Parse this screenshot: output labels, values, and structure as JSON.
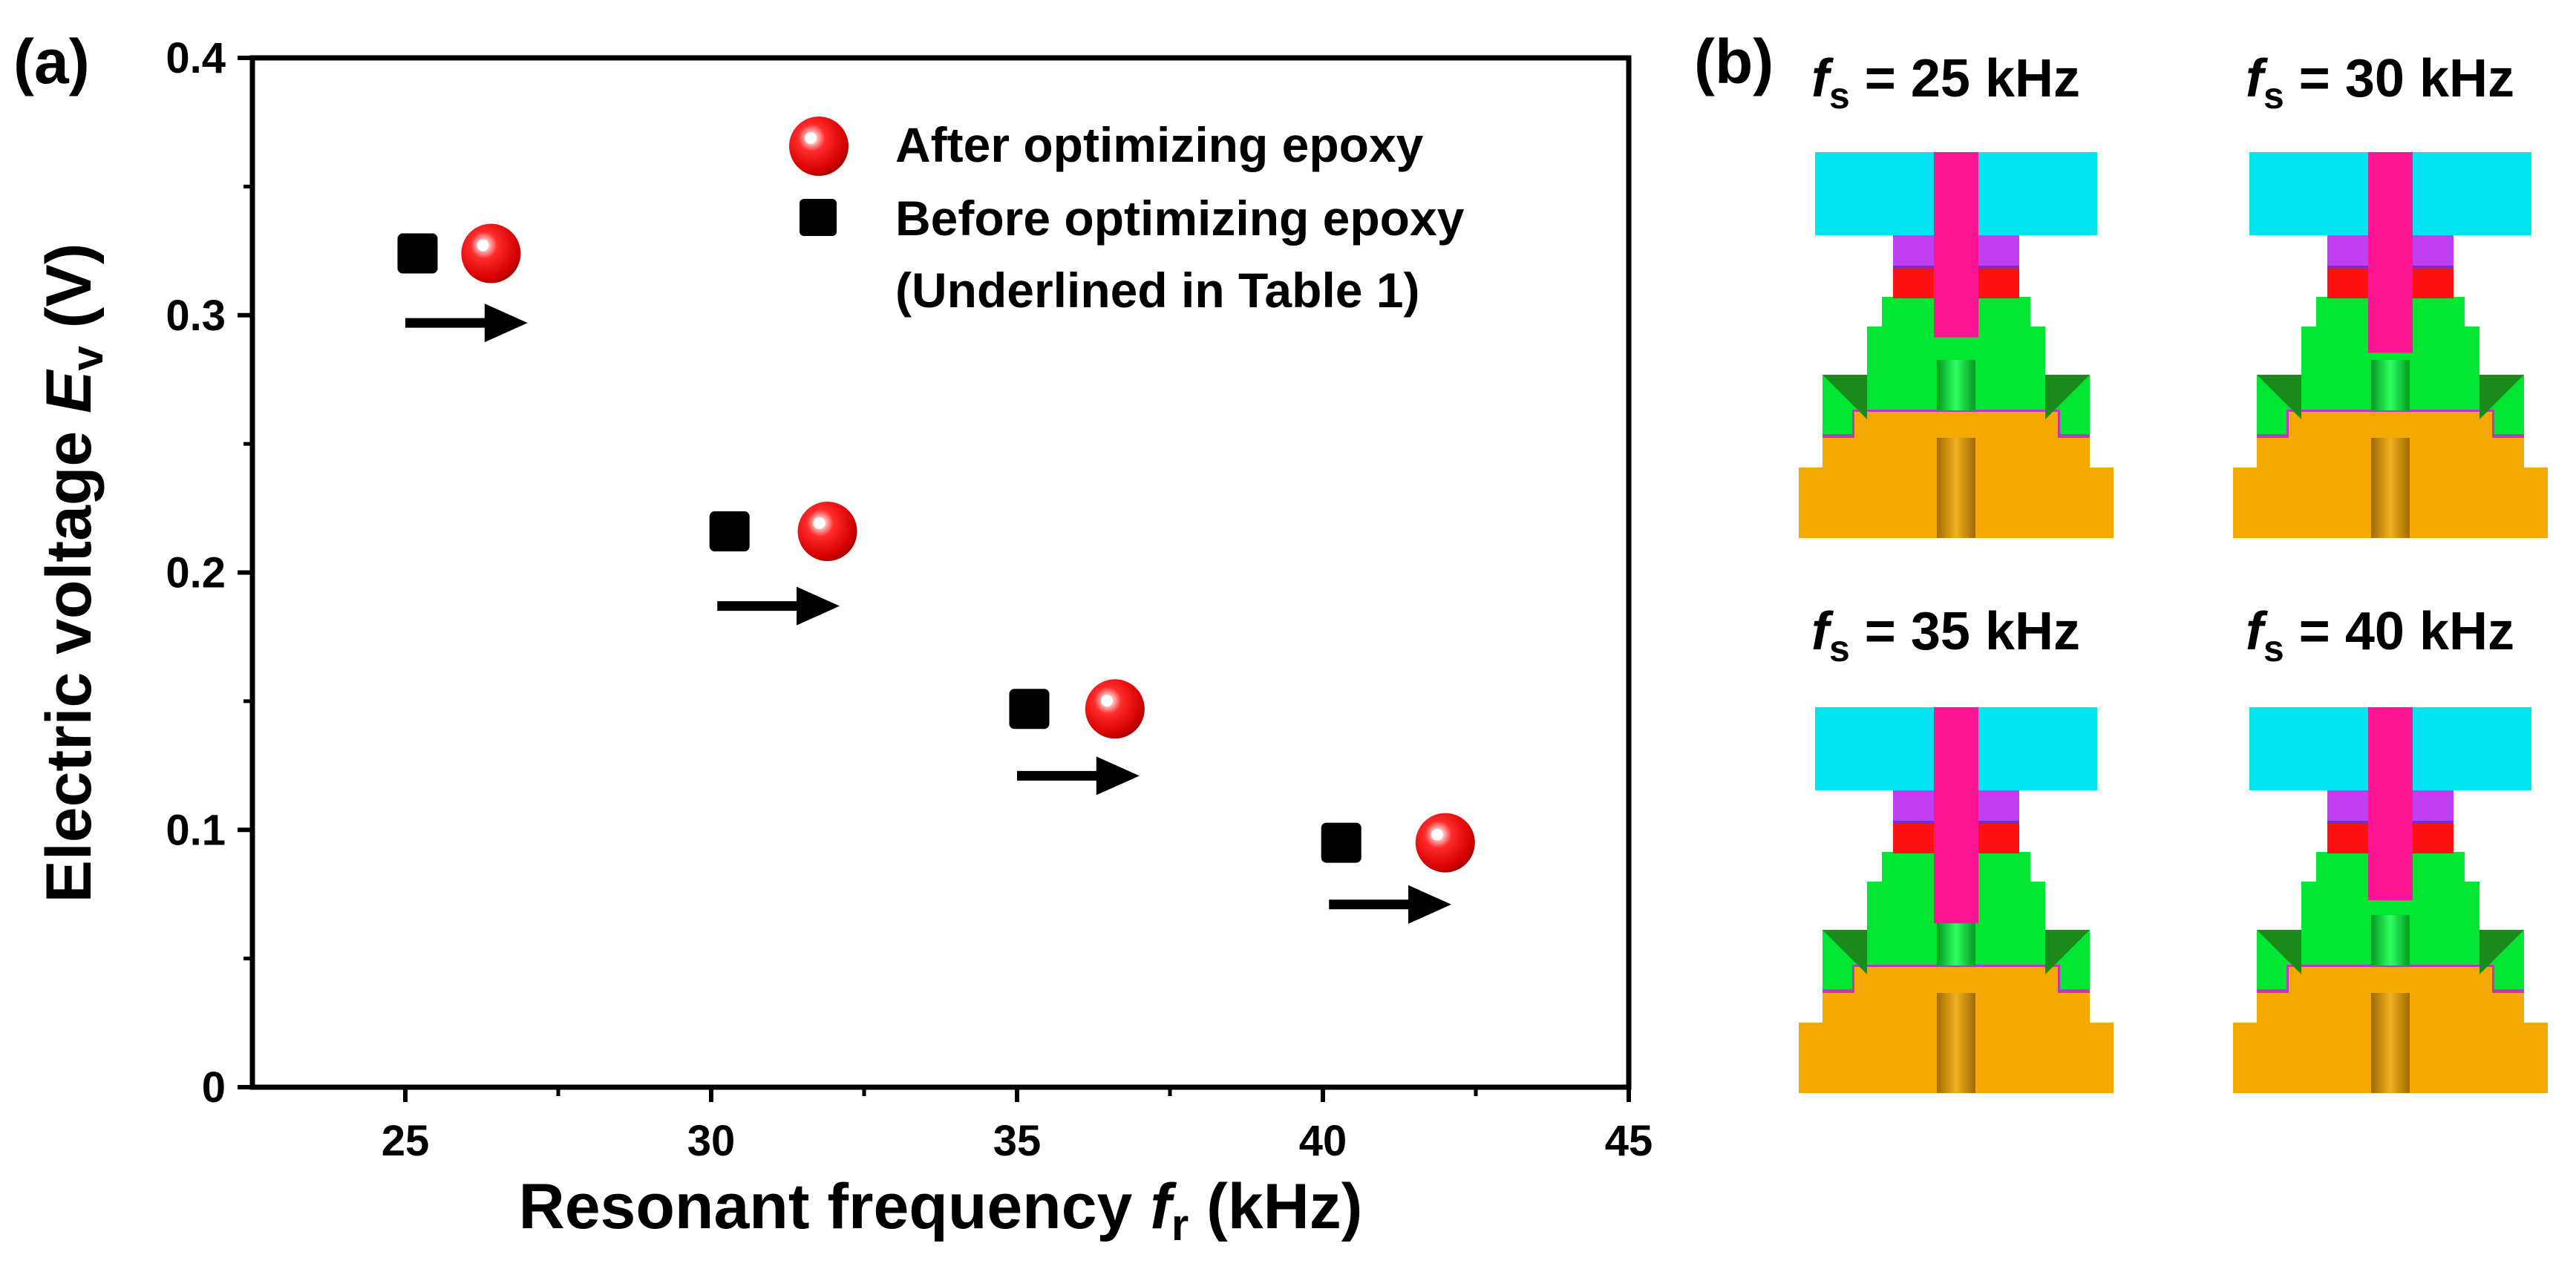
{
  "panel_a": {
    "label": "(a)",
    "ylabel_main": "Electric voltage ",
    "ylabel_sym": "E",
    "ylabel_sub": "v",
    "ylabel_unit": " (V)",
    "xlabel_main": "Resonant frequency ",
    "xlabel_sym": "f",
    "xlabel_sub": "r",
    "xlabel_unit": " (kHz)",
    "legend": {
      "after": "After optimizing epoxy",
      "before": "Before optimizing epoxy",
      "note": "(Underlined in Table 1)"
    }
  },
  "panel_b": {
    "label": "(b)",
    "designs": [
      {
        "sym": "f",
        "sub": "s",
        "text": " = 25 kHz",
        "stem_end": 0.48
      },
      {
        "sym": "f",
        "sub": "s",
        "text": " = 30 kHz",
        "stem_end": 0.52
      },
      {
        "sym": "f",
        "sub": "s",
        "text": " = 35 kHz",
        "stem_end": 0.56
      },
      {
        "sym": "f",
        "sub": "s",
        "text": " = 40 kHz",
        "stem_end": 0.5
      }
    ],
    "colors": {
      "top_block": "#00e5ef",
      "stem": "#ff1493",
      "purple": "#c03ff0",
      "red": "#ff1010",
      "green": "#00e632",
      "dark_green": "#1a8a1a",
      "base": "#f5a800",
      "base_dark": "#b87a00",
      "line": "#c832c8"
    }
  },
  "chart_data": {
    "type": "scatter",
    "xlabel": "Resonant frequency fr (kHz)",
    "ylabel": "Electric voltage Ev (V)",
    "xlim": [
      22.5,
      45
    ],
    "ylim": [
      0,
      0.4
    ],
    "xticks": [
      25,
      30,
      35,
      40,
      45
    ],
    "yticks": [
      0,
      0.1,
      0.2,
      0.3,
      0.4
    ],
    "xtick_labels": [
      "25",
      "30",
      "35",
      "40",
      "45"
    ],
    "ytick_labels": [
      "0",
      "0.1",
      "0.2",
      "0.3",
      "0.4"
    ],
    "grid": false,
    "legend_position": "top-right",
    "series": [
      {
        "name": "After optimizing epoxy",
        "marker": "red-sphere",
        "x": [
          26.4,
          31.9,
          36.6,
          42.0
        ],
        "y": [
          0.324,
          0.216,
          0.147,
          0.095
        ]
      },
      {
        "name": "Before optimizing epoxy (Underlined in Table 1)",
        "marker": "black-square",
        "x": [
          25.2,
          30.3,
          35.2,
          40.3
        ],
        "y": [
          0.324,
          0.216,
          0.147,
          0.095
        ]
      }
    ],
    "arrows": [
      {
        "x_from": 25.0,
        "x_to": 27.0,
        "y": 0.297
      },
      {
        "x_from": 30.1,
        "x_to": 32.1,
        "y": 0.187
      },
      {
        "x_from": 35.0,
        "x_to": 37.0,
        "y": 0.121
      },
      {
        "x_from": 40.1,
        "x_to": 42.1,
        "y": 0.071
      }
    ]
  }
}
